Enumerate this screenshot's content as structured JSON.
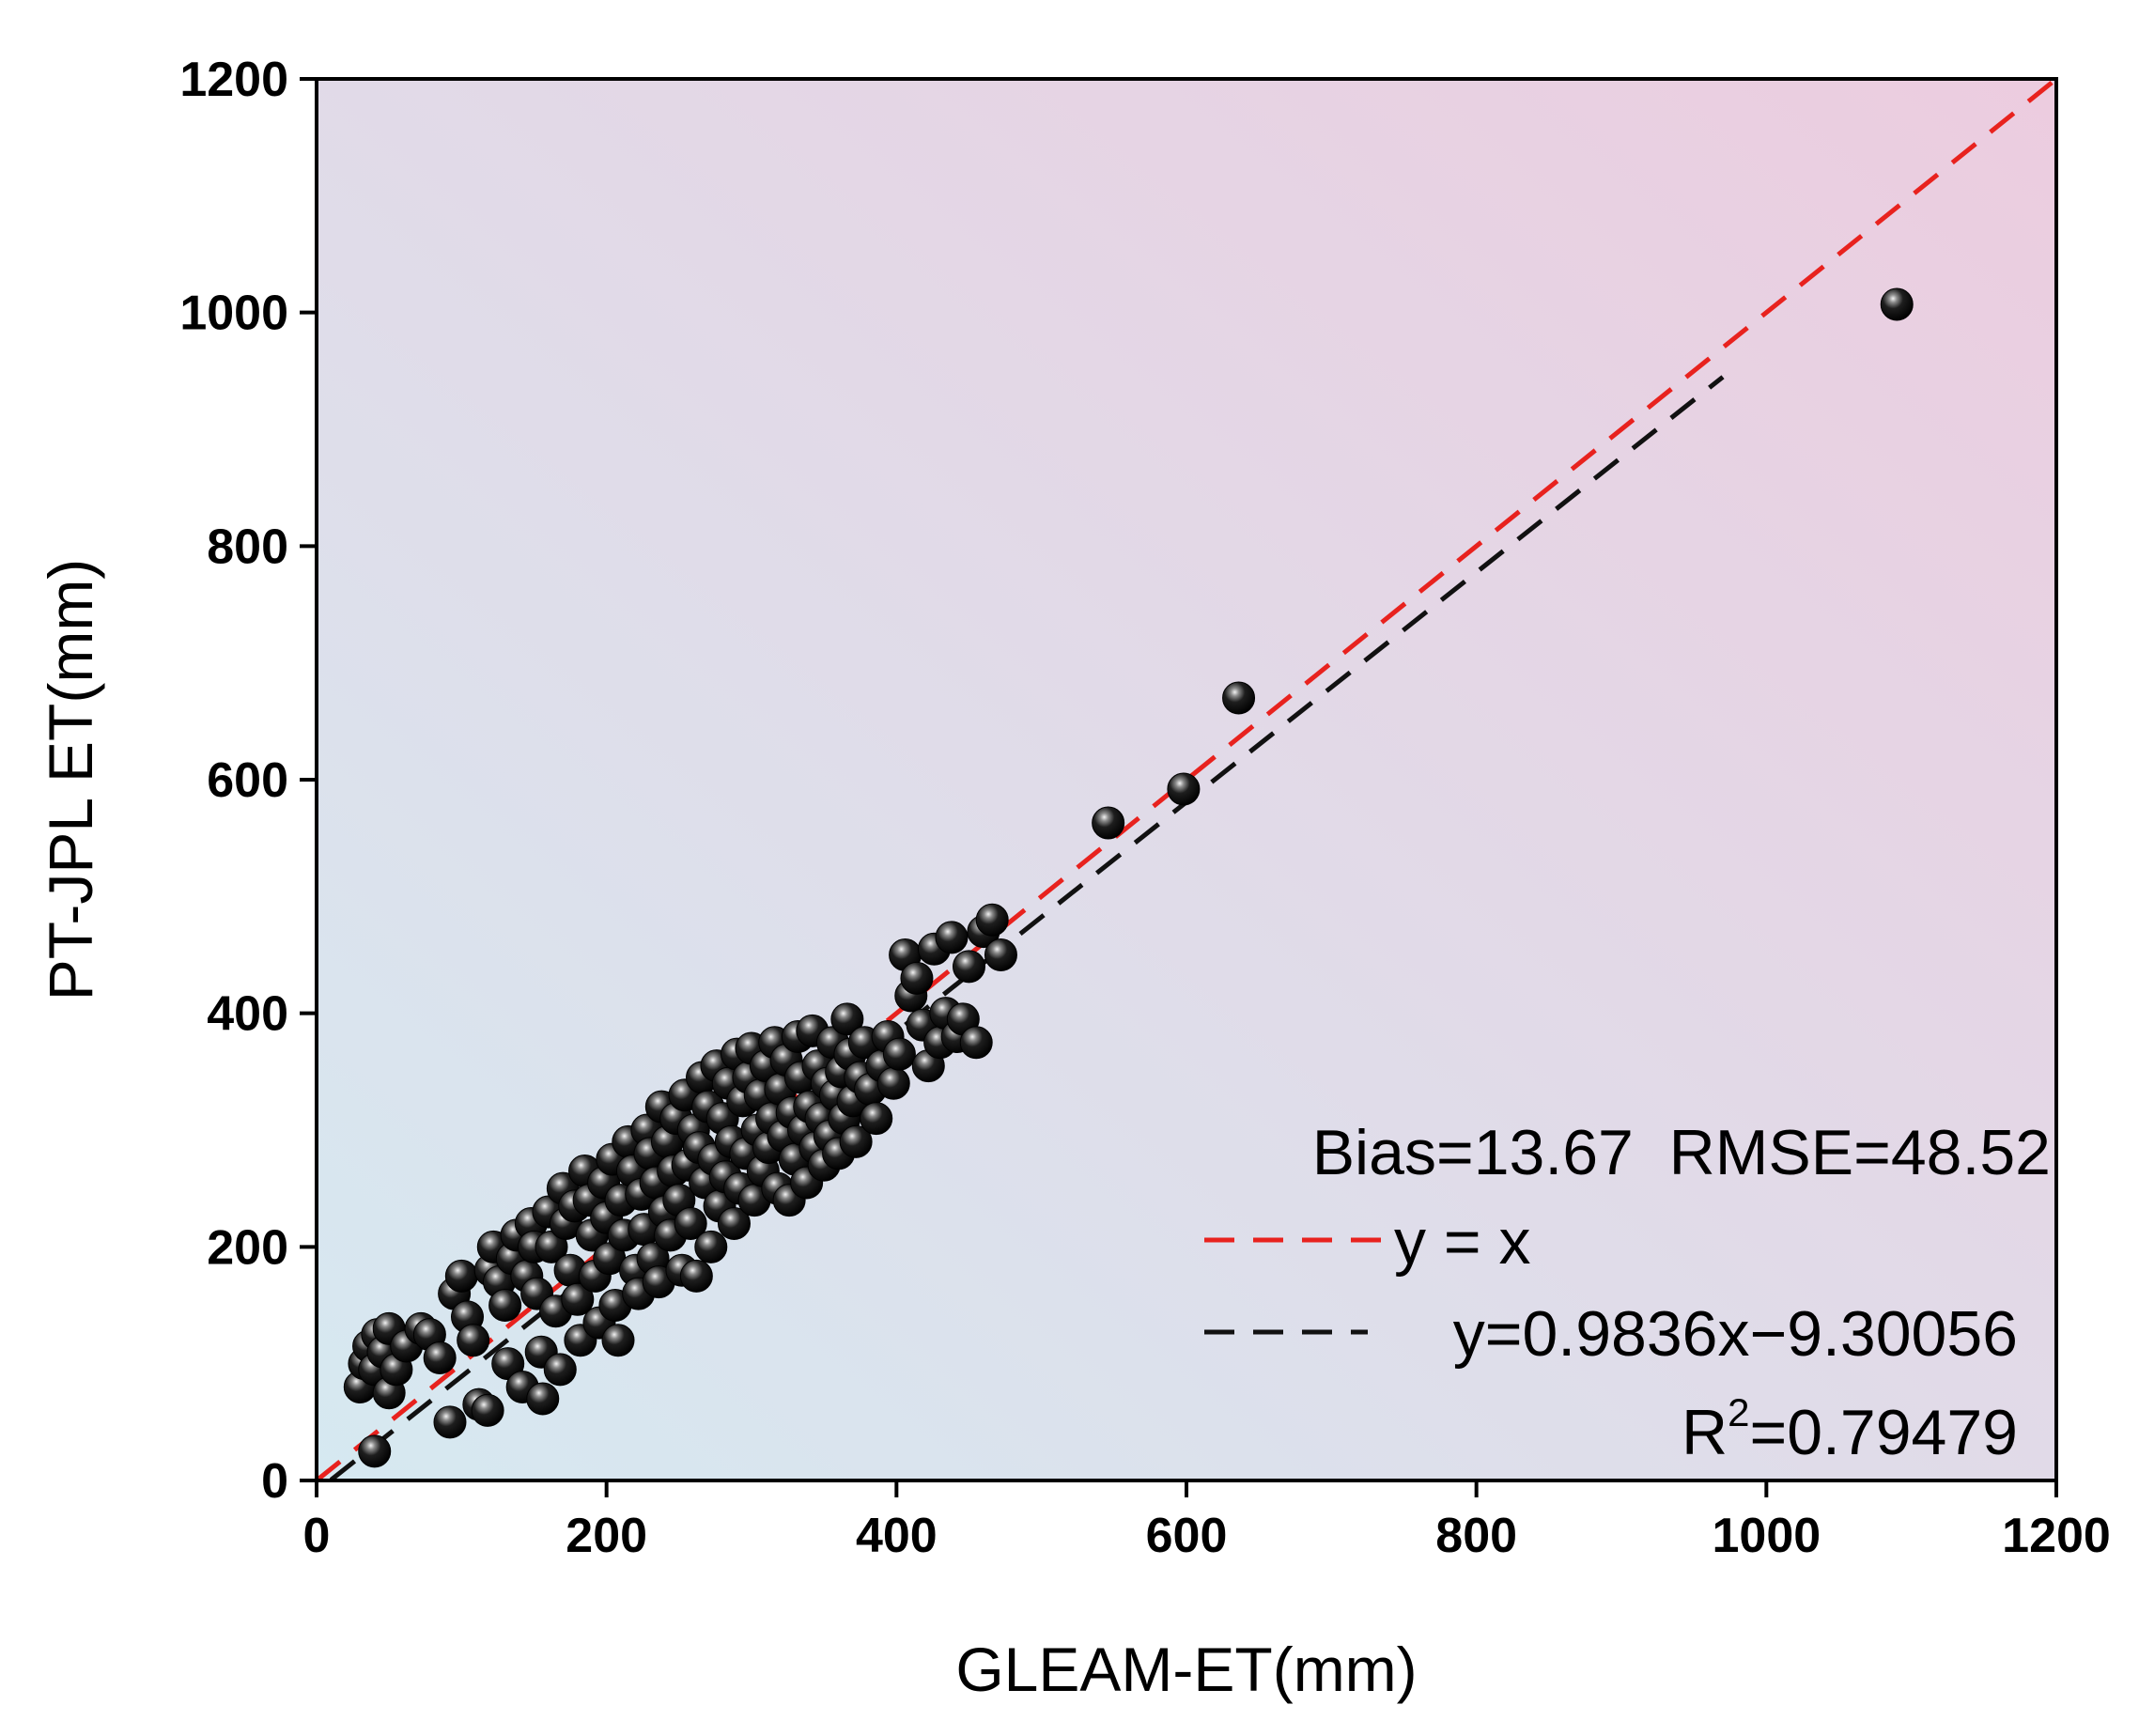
{
  "chart_data": {
    "type": "scatter",
    "xlabel": "GLEAM-ET(mm)",
    "ylabel": "PT-JPL ET(mm)",
    "xlim": [
      0,
      1200
    ],
    "ylim": [
      0,
      1200
    ],
    "xticks": [
      0,
      200,
      400,
      600,
      800,
      1000,
      1200
    ],
    "yticks": [
      0,
      200,
      400,
      600,
      800,
      1000,
      1200
    ],
    "background_gradient": [
      "#d6e9f1",
      "#ecccdf"
    ],
    "marker_color": "#111111",
    "annotations": {
      "stats": "Bias=13.67  RMSE=48.52",
      "identity_label": "y = x",
      "fit_label": "y=0.9836x−9.30056",
      "r2_prefix": "R",
      "r2_sup": "2",
      "r2_value": "=0.79479"
    },
    "lines": [
      {
        "name": "y = x",
        "color": "#e8221e",
        "dash": "dashed",
        "slope": 1.0,
        "intercept": 0,
        "x_range": [
          0,
          1200
        ]
      },
      {
        "name": "y=0.9836x−9.30056",
        "color": "#111111",
        "dash": "dashed",
        "slope": 0.9836,
        "intercept": -9.30056,
        "x_range": [
          10,
          970
        ]
      }
    ],
    "series": [
      {
        "points": [
          [
            30,
            80
          ],
          [
            33,
            100
          ],
          [
            36,
            115
          ],
          [
            40,
            95
          ],
          [
            42,
            125
          ],
          [
            46,
            110
          ],
          [
            50,
            130
          ],
          [
            50,
            75
          ],
          [
            40,
            25
          ],
          [
            55,
            95
          ],
          [
            62,
            115
          ],
          [
            72,
            130
          ],
          [
            78,
            125
          ],
          [
            85,
            105
          ],
          [
            92,
            50
          ],
          [
            95,
            160
          ],
          [
            100,
            175
          ],
          [
            104,
            140
          ],
          [
            108,
            120
          ],
          [
            112,
            65
          ],
          [
            118,
            60
          ],
          [
            120,
            180
          ],
          [
            122,
            200
          ],
          [
            126,
            170
          ],
          [
            130,
            150
          ],
          [
            132,
            100
          ],
          [
            135,
            190
          ],
          [
            138,
            210
          ],
          [
            142,
            80
          ],
          [
            145,
            175
          ],
          [
            148,
            220
          ],
          [
            150,
            200
          ],
          [
            152,
            160
          ],
          [
            155,
            110
          ],
          [
            156,
            70
          ],
          [
            160,
            230
          ],
          [
            162,
            200
          ],
          [
            165,
            145
          ],
          [
            168,
            95
          ],
          [
            170,
            250
          ],
          [
            172,
            220
          ],
          [
            175,
            180
          ],
          [
            178,
            235
          ],
          [
            180,
            155
          ],
          [
            182,
            120
          ],
          [
            185,
            265
          ],
          [
            188,
            240
          ],
          [
            190,
            210
          ],
          [
            192,
            175
          ],
          [
            195,
            135
          ],
          [
            198,
            255
          ],
          [
            200,
            225
          ],
          [
            202,
            190
          ],
          [
            204,
            275
          ],
          [
            206,
            150
          ],
          [
            208,
            120
          ],
          [
            210,
            240
          ],
          [
            212,
            210
          ],
          [
            215,
            290
          ],
          [
            218,
            265
          ],
          [
            220,
            180
          ],
          [
            222,
            160
          ],
          [
            224,
            245
          ],
          [
            226,
            215
          ],
          [
            228,
            300
          ],
          [
            230,
            280
          ],
          [
            232,
            190
          ],
          [
            234,
            255
          ],
          [
            236,
            170
          ],
          [
            238,
            320
          ],
          [
            240,
            230
          ],
          [
            242,
            290
          ],
          [
            244,
            210
          ],
          [
            246,
            265
          ],
          [
            248,
            310
          ],
          [
            250,
            240
          ],
          [
            252,
            180
          ],
          [
            254,
            330
          ],
          [
            256,
            270
          ],
          [
            258,
            220
          ],
          [
            260,
            300
          ],
          [
            262,
            175
          ],
          [
            264,
            285
          ],
          [
            266,
            345
          ],
          [
            268,
            255
          ],
          [
            270,
            320
          ],
          [
            272,
            200
          ],
          [
            274,
            275
          ],
          [
            276,
            355
          ],
          [
            278,
            235
          ],
          [
            280,
            310
          ],
          [
            282,
            260
          ],
          [
            284,
            340
          ],
          [
            286,
            290
          ],
          [
            288,
            220
          ],
          [
            290,
            365
          ],
          [
            292,
            250
          ],
          [
            294,
            325
          ],
          [
            296,
            280
          ],
          [
            298,
            345
          ],
          [
            300,
            370
          ],
          [
            302,
            240
          ],
          [
            304,
            300
          ],
          [
            306,
            330
          ],
          [
            308,
            265
          ],
          [
            310,
            355
          ],
          [
            312,
            285
          ],
          [
            314,
            310
          ],
          [
            316,
            375
          ],
          [
            318,
            250
          ],
          [
            320,
            335
          ],
          [
            322,
            295
          ],
          [
            324,
            360
          ],
          [
            326,
            240
          ],
          [
            328,
            315
          ],
          [
            330,
            275
          ],
          [
            332,
            380
          ],
          [
            334,
            345
          ],
          [
            336,
            300
          ],
          [
            338,
            255
          ],
          [
            340,
            320
          ],
          [
            342,
            385
          ],
          [
            344,
            285
          ],
          [
            346,
            355
          ],
          [
            348,
            310
          ],
          [
            350,
            270
          ],
          [
            352,
            340
          ],
          [
            354,
            295
          ],
          [
            356,
            375
          ],
          [
            358,
            330
          ],
          [
            360,
            280
          ],
          [
            362,
            350
          ],
          [
            364,
            310
          ],
          [
            366,
            395
          ],
          [
            368,
            365
          ],
          [
            370,
            325
          ],
          [
            372,
            290
          ],
          [
            375,
            345
          ],
          [
            378,
            375
          ],
          [
            382,
            335
          ],
          [
            386,
            310
          ],
          [
            390,
            355
          ],
          [
            394,
            380
          ],
          [
            398,
            340
          ],
          [
            402,
            365
          ],
          [
            406,
            450
          ],
          [
            410,
            415
          ],
          [
            414,
            430
          ],
          [
            418,
            390
          ],
          [
            422,
            355
          ],
          [
            426,
            455
          ],
          [
            430,
            375
          ],
          [
            434,
            400
          ],
          [
            438,
            465
          ],
          [
            442,
            380
          ],
          [
            446,
            395
          ],
          [
            450,
            440
          ],
          [
            455,
            375
          ],
          [
            460,
            470
          ],
          [
            466,
            480
          ],
          [
            472,
            450
          ],
          [
            546,
            563
          ],
          [
            598,
            592
          ],
          [
            636,
            670
          ],
          [
            1090,
            1007
          ]
        ]
      }
    ]
  }
}
